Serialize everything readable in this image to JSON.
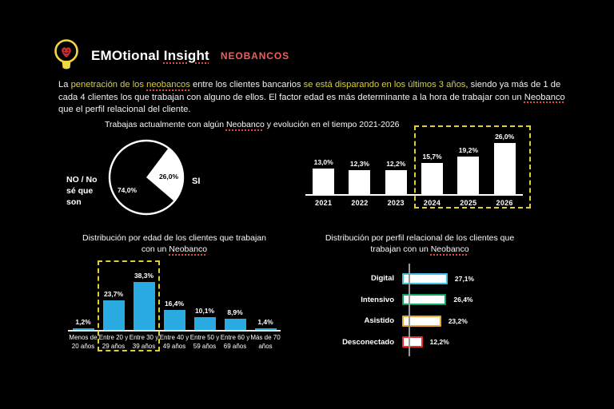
{
  "header": {
    "brand_segments": [
      {
        "t": "EMOtional "
      },
      {
        "t": "Insight",
        "u": true
      }
    ],
    "tag": "NEOBANCOS"
  },
  "intro": {
    "segments": [
      {
        "t": "La "
      },
      {
        "t": "penetración de los ",
        "hl": true
      },
      {
        "t": "neobancos",
        "hl": true,
        "u": true
      },
      {
        "t": " entre los clientes bancarios "
      },
      {
        "t": "se está disparando en los últimos 3 años",
        "hl": true
      },
      {
        "t": ", siendo ya más de 1 de cada 4 clientes los que trabajan con alguno de ellos. El factor edad es más determinante a la hora de trabajar con un "
      },
      {
        "t": "Neobanco",
        "u": true
      },
      {
        "t": " que el perfil relacional del cliente."
      }
    ]
  },
  "sections": {
    "usage": {
      "title": [
        {
          "t": "Trabajas actualmente con algún "
        },
        {
          "t": "Neobanco",
          "u": true
        },
        {
          "t": " y evolución en el tiempo 2021-2026"
        }
      ]
    },
    "age": {
      "title_line1": [
        {
          "t": "Distribución por edad de los clientes que trabajan"
        }
      ],
      "title_line2": [
        {
          "t": "con un "
        },
        {
          "t": "Neobanco",
          "u": true
        }
      ]
    },
    "profile": {
      "title_line1": [
        {
          "t": "Distribución por perfil relacional de los clientes que"
        }
      ],
      "title_line2": [
        {
          "t": "trabajan con un "
        },
        {
          "t": "Neobanco",
          "u": true
        }
      ]
    }
  },
  "chart_data": [
    {
      "id": "neobanco-usage-pie",
      "type": "pie",
      "slices": [
        {
          "label": "NO / No\nsé que\nson",
          "value": 74.0,
          "display": "74,0%",
          "color": "#000000"
        },
        {
          "label": "SI",
          "value": 26.0,
          "display": "26,0%",
          "color": "#ffffff"
        }
      ],
      "outline_color": "#ffffff"
    },
    {
      "id": "neobanco-evolution-bar",
      "type": "bar",
      "categories": [
        "2021",
        "2022",
        "2023",
        "2024",
        "2025",
        "2026"
      ],
      "values": [
        13.0,
        12.3,
        12.2,
        15.7,
        19.2,
        26.0
      ],
      "labels": [
        "13,0%",
        "12,3%",
        "12,2%",
        "15,7%",
        "19,2%",
        "26,0%"
      ],
      "bar_color": "#ffffff",
      "highlight_box_categories": [
        "2024",
        "2025",
        "2026"
      ],
      "highlight_box_color": "#dfd02c",
      "ylim": [
        0,
        30
      ]
    },
    {
      "id": "age-distribution-bar",
      "type": "bar",
      "categories": [
        "Menos de\n20 años",
        "Entre 20 y\n29 años",
        "Entre 30 y\n39 años",
        "Entre 40 y\n49 años",
        "Entre 50 y\n59 años",
        "Entre 60 y\n69 años",
        "Más de 70\naños"
      ],
      "values": [
        1.2,
        23.7,
        38.3,
        16.4,
        10.1,
        8.9,
        1.4
      ],
      "labels": [
        "1,2%",
        "23,7%",
        "38,3%",
        "16,4%",
        "10,1%",
        "8,9%",
        "1,4%"
      ],
      "bar_color": "#29abe2",
      "highlight_box_categories": [
        "Entre 20 y 29 años",
        "Entre 30 y 39 años"
      ],
      "highlight_box_color": "#dfd02c",
      "ylim": [
        0,
        42
      ]
    },
    {
      "id": "relational-profile-bar",
      "type": "bar",
      "orientation": "horizontal",
      "categories": [
        "Digital",
        "Intensivo",
        "Asistido",
        "Desconectado"
      ],
      "values": [
        27.1,
        26.4,
        23.2,
        12.2
      ],
      "labels": [
        "27,1%",
        "26,4%",
        "23,2%",
        "12,2%"
      ],
      "bar_fill": "#ffffff",
      "bar_border_colors": [
        "#3fc0dc",
        "#12a25c",
        "#eaa733",
        "#ed2b2f"
      ],
      "xlim": [
        0,
        30
      ]
    }
  ],
  "colors": {
    "background": "#000000",
    "text": "#ffffff",
    "accent_yellow": "#d8ce3e",
    "dashed_yellow": "#dfd02c",
    "brand_red": "#ef5e5e",
    "underline_red": "#e04848",
    "bar_blue": "#29abe2"
  }
}
